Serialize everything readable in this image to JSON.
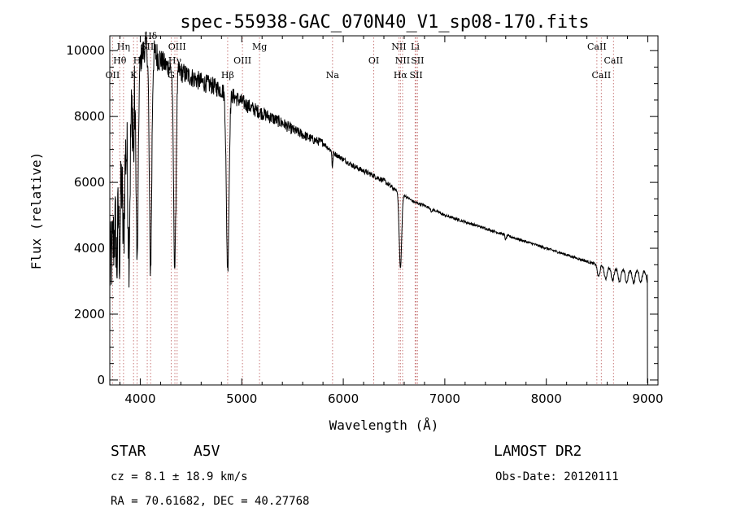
{
  "chart_data": {
    "type": "line",
    "title": "spec-55938-GAC_070N40_V1_sp08-170.fits",
    "xlabel": "Wavelength (Å)",
    "ylabel": "Flux (relative)",
    "xlim": [
      3700,
      9100
    ],
    "ylim": [
      -150,
      10450
    ],
    "xticks": [
      4000,
      5000,
      6000,
      7000,
      8000,
      9000
    ],
    "yticks": [
      0,
      2000,
      4000,
      6000,
      8000,
      10000
    ],
    "grid": false,
    "continuum": [
      [
        3700,
        3300
      ],
      [
        3760,
        4800
      ],
      [
        3820,
        6200
      ],
      [
        3880,
        7300
      ],
      [
        3940,
        8600
      ],
      [
        4000,
        9700
      ],
      [
        4050,
        10150
      ],
      [
        4100,
        10100
      ],
      [
        4150,
        9900
      ],
      [
        4250,
        9550
      ],
      [
        4400,
        9350
      ],
      [
        4500,
        9200
      ],
      [
        4600,
        9050
      ],
      [
        4700,
        8950
      ],
      [
        4800,
        8800
      ],
      [
        4900,
        8650
      ],
      [
        5000,
        8450
      ],
      [
        5100,
        8250
      ],
      [
        5200,
        8100
      ],
      [
        5300,
        7950
      ],
      [
        5400,
        7800
      ],
      [
        5500,
        7600
      ],
      [
        5600,
        7450
      ],
      [
        5700,
        7300
      ],
      [
        5800,
        7200
      ],
      [
        5900,
        6900
      ],
      [
        6000,
        6700
      ],
      [
        6100,
        6500
      ],
      [
        6200,
        6350
      ],
      [
        6300,
        6200
      ],
      [
        6400,
        6050
      ],
      [
        6500,
        5800
      ],
      [
        6560,
        5700
      ],
      [
        6650,
        5500
      ],
      [
        6700,
        5400
      ],
      [
        6800,
        5300
      ],
      [
        6900,
        5150
      ],
      [
        7000,
        5000
      ],
      [
        7200,
        4800
      ],
      [
        7400,
        4600
      ],
      [
        7600,
        4400
      ],
      [
        7800,
        4200
      ],
      [
        8000,
        4000
      ],
      [
        8200,
        3800
      ],
      [
        8400,
        3600
      ],
      [
        8600,
        3400
      ],
      [
        8800,
        3300
      ],
      [
        8990,
        3300
      ]
    ],
    "absorption_features": [
      {
        "center": 3770,
        "depth": 1500,
        "width": 6
      },
      {
        "center": 3797,
        "depth": 1700,
        "width": 7
      },
      {
        "center": 3835,
        "depth": 2300,
        "width": 8
      },
      {
        "center": 3889,
        "depth": 3400,
        "width": 9
      },
      {
        "center": 3934,
        "depth": 1800,
        "width": 4
      },
      {
        "center": 3970,
        "depth": 5600,
        "width": 10
      },
      {
        "center": 4101,
        "depth": 6700,
        "width": 12
      },
      {
        "center": 4340,
        "depth": 6000,
        "width": 12
      },
      {
        "center": 4861,
        "depth": 5300,
        "width": 13
      },
      {
        "center": 5893,
        "depth": 500,
        "width": 4
      },
      {
        "center": 6563,
        "depth": 2300,
        "width": 12
      },
      {
        "center": 6870,
        "depth": 120,
        "width": 5
      },
      {
        "center": 7600,
        "depth": 150,
        "width": 6
      }
    ],
    "high_noise_region": [
      8480,
      8990
    ],
    "end_drop": {
      "x": 8995,
      "y": -100
    },
    "spectral_lines": [
      {
        "name": "OII",
        "wavelength": 3727,
        "row": 3
      },
      {
        "name": "Hθ",
        "wavelength": 3798,
        "row": 2
      },
      {
        "name": "Hη",
        "wavelength": 3835,
        "row": 1
      },
      {
        "name": "K",
        "wavelength": 3934,
        "row": 3
      },
      {
        "name": "H",
        "wavelength": 3969,
        "row": 2
      },
      {
        "name": "SII",
        "wavelength": 4069,
        "row": 1
      },
      {
        "name": "Hδ",
        "wavelength": 4102,
        "row": 0
      },
      {
        "name": "G",
        "wavelength": 4305,
        "row": 3
      },
      {
        "name": "Hγ",
        "wavelength": 4341,
        "row": 2
      },
      {
        "name": "OIII",
        "wavelength": 4363,
        "row": 1
      },
      {
        "name": "Hβ",
        "wavelength": 4861,
        "row": 3
      },
      {
        "name": "OIII",
        "wavelength": 5007,
        "row": 2
      },
      {
        "name": "Mg",
        "wavelength": 5175,
        "row": 1
      },
      {
        "name": "Na",
        "wavelength": 5894,
        "row": 3
      },
      {
        "name": "OI",
        "wavelength": 6300,
        "row": 2
      },
      {
        "name": "NII",
        "wavelength": 6548,
        "row": 1
      },
      {
        "name": "Hα",
        "wavelength": 6563,
        "row": 3
      },
      {
        "name": "NII",
        "wavelength": 6584,
        "row": 2
      },
      {
        "name": "Li",
        "wavelength": 6708,
        "row": 1
      },
      {
        "name": "SII",
        "wavelength": 6717,
        "row": 3
      },
      {
        "name": "SII",
        "wavelength": 6731,
        "row": 2
      },
      {
        "name": "CaII",
        "wavelength": 8498,
        "row": 1
      },
      {
        "name": "CaII",
        "wavelength": 8542,
        "row": 3
      },
      {
        "name": "CaII",
        "wavelength": 8662,
        "row": 2
      }
    ]
  },
  "footer": {
    "class": "STAR",
    "subclass": "A5V",
    "survey": "LAMOST DR2",
    "cz": "cz = 8.1 ± 18.9 km/s",
    "obs_date": "Obs-Date: 20120111",
    "coords": "RA =  70.61682, DEC =  40.27768"
  },
  "colors": {
    "spectrum": "#000000",
    "line_markers": "#c87878",
    "axes": "#000000"
  }
}
